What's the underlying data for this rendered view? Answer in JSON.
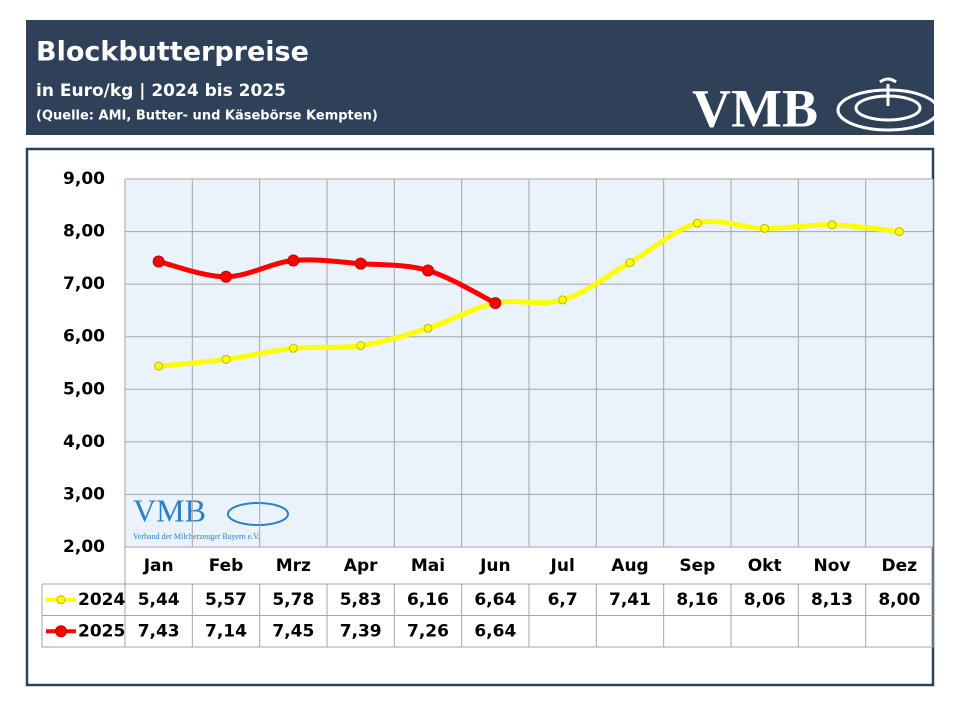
{
  "chart_data": {
    "type": "line",
    "title": "Blockbutterpreise",
    "subtitle": "in Euro/kg | 2024 bis 2025",
    "source": "(Quelle: AMI, Butter- und Käsebörse Kempten)",
    "logo": "VMB",
    "watermark": "VMB",
    "watermark_subtitle": "Verband der Milcherzeuger Bayern e.V.",
    "categories": [
      "Jan",
      "Feb",
      "Mrz",
      "Apr",
      "Mai",
      "Jun",
      "Jul",
      "Aug",
      "Sep",
      "Okt",
      "Nov",
      "Dez"
    ],
    "series": [
      {
        "name": "2024",
        "color": "#ffff00",
        "marker_edge": "#c8b400",
        "values": [
          5.44,
          5.57,
          5.78,
          5.83,
          6.16,
          6.64,
          6.7,
          7.41,
          8.16,
          8.06,
          8.13,
          8.0
        ],
        "value_labels": [
          "5,44",
          "5,57",
          "5,78",
          "5,83",
          "6,16",
          "6,64",
          "6,7",
          "7,41",
          "8,16",
          "8,06",
          "8,13",
          "8,00"
        ]
      },
      {
        "name": "2025",
        "color": "#ff0000",
        "marker_edge": "#c00000",
        "values": [
          7.43,
          7.14,
          7.45,
          7.39,
          7.26,
          6.64,
          null,
          null,
          null,
          null,
          null,
          null
        ],
        "value_labels": [
          "7,43",
          "7,14",
          "7,45",
          "7,39",
          "7,26",
          "6,64",
          null,
          null,
          null,
          null,
          null,
          null
        ]
      }
    ],
    "ylim": [
      2,
      9
    ],
    "yticks": [
      {
        "value": 2,
        "label": "2,00"
      },
      {
        "value": 3,
        "label": "3,00"
      },
      {
        "value": 4,
        "label": "4,00"
      },
      {
        "value": 5,
        "label": "5,00"
      },
      {
        "value": 6,
        "label": "6,00"
      },
      {
        "value": 7,
        "label": "7,00"
      },
      {
        "value": 8,
        "label": "8,00"
      },
      {
        "value": 9,
        "label": "9,00"
      }
    ],
    "grid": true,
    "smooth": true
  }
}
